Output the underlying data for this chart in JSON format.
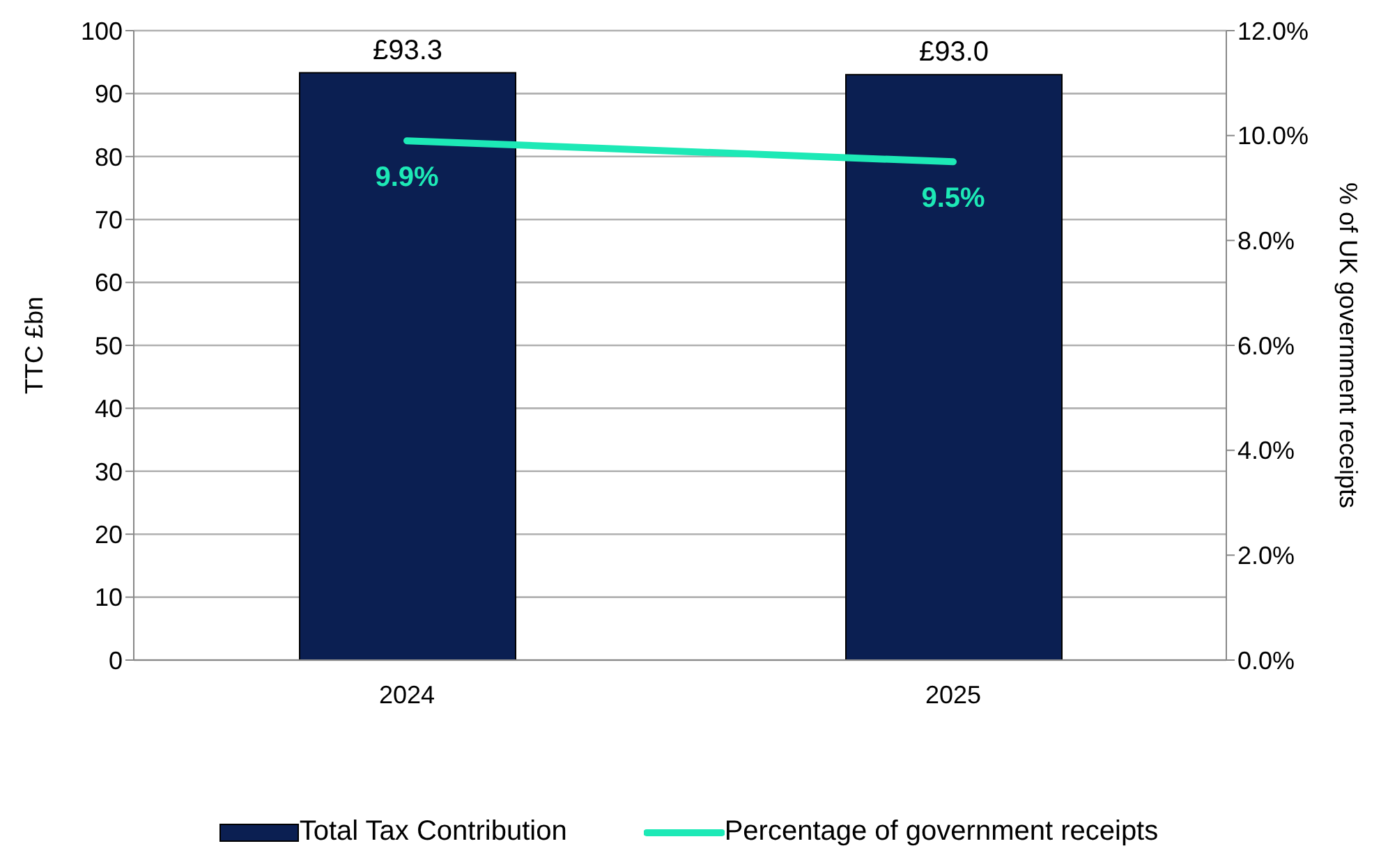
{
  "chart_data": {
    "type": "bar",
    "categories": [
      "2024",
      "2025"
    ],
    "ylabel": "TTC £bn",
    "y2label": "% of UK government receipts",
    "ylim": [
      0,
      100
    ],
    "yticks": [
      0,
      10,
      20,
      30,
      40,
      50,
      60,
      70,
      80,
      90,
      100
    ],
    "y2lim": [
      0,
      12
    ],
    "y2ticks": [
      {
        "value": 0,
        "label": "0.0%"
      },
      {
        "value": 2,
        "label": "2.0%"
      },
      {
        "value": 4,
        "label": "4.0%"
      },
      {
        "value": 6,
        "label": "6.0%"
      },
      {
        "value": 8,
        "label": "8.0%"
      },
      {
        "value": 10,
        "label": "10.0%"
      },
      {
        "value": 12,
        "label": "12.0%"
      }
    ],
    "grid": "y",
    "legend": "bottom",
    "series": [
      {
        "name": "Total Tax Contribution",
        "color": "#0b1f52",
        "values": [
          93.3,
          93.0
        ],
        "value_labels": [
          "£93.3",
          "£93.0"
        ]
      },
      {
        "name": "Percentage of government receipts",
        "type": "line",
        "axis": "y2",
        "color": "#1de9b6",
        "values": [
          9.9,
          9.5
        ],
        "value_labels": [
          "9.9%",
          "9.5%"
        ]
      }
    ]
  }
}
